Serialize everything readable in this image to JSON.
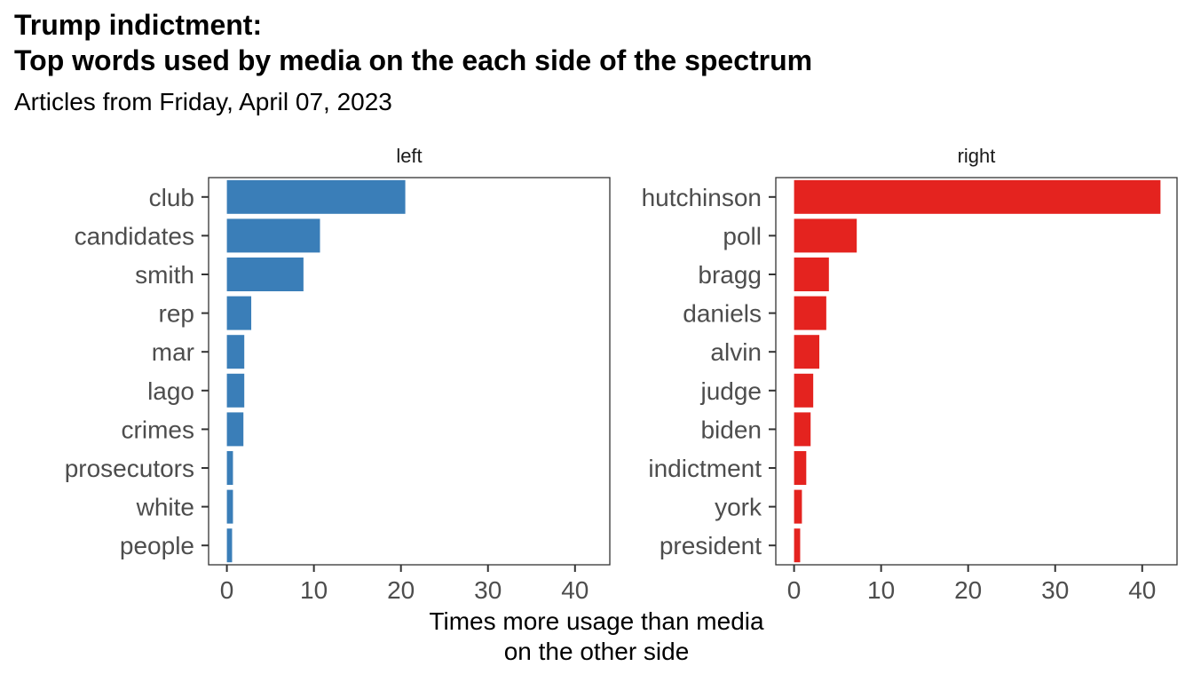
{
  "title_line1": "Trump indictment:",
  "title_line2": "Top words used by media on the each side of the spectrum",
  "subtitle": "Articles from Friday, April 07, 2023",
  "chart_data": {
    "type": "bar",
    "orientation": "horizontal",
    "xlabel_line1": "Times more usage than media",
    "xlabel_line2": "on the other side",
    "xlim": [
      0,
      42
    ],
    "xticks": [
      0,
      10,
      20,
      30,
      40
    ],
    "grid": false,
    "panels": [
      {
        "label": "left",
        "color": "#3a7eb8",
        "categories": [
          "club",
          "candidates",
          "smith",
          "rep",
          "mar",
          "lago",
          "crimes",
          "prosecutors",
          "white",
          "people"
        ],
        "values": [
          20.5,
          10.7,
          8.8,
          2.8,
          2.0,
          2.0,
          1.9,
          0.7,
          0.7,
          0.6
        ]
      },
      {
        "label": "right",
        "color": "#e4231f",
        "categories": [
          "hutchinson",
          "poll",
          "bragg",
          "daniels",
          "alvin",
          "judge",
          "biden",
          "indictment",
          "york",
          "president"
        ],
        "values": [
          42.1,
          7.2,
          4.0,
          3.7,
          2.9,
          2.2,
          1.9,
          1.4,
          0.9,
          0.7
        ]
      }
    ]
  }
}
